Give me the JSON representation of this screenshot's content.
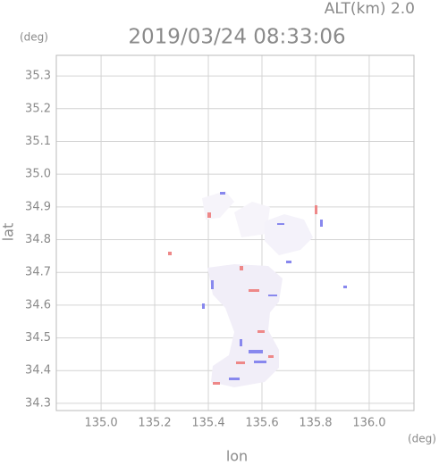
{
  "chart_data": {
    "type": "map",
    "title": "2019/03/24 08:33:06",
    "subtitle": "ALT(km) 2.0",
    "x_label": "lon",
    "x_unit": "(deg)",
    "y_label": "lat",
    "y_unit": "(deg)",
    "xlim": [
      134.833,
      136.167
    ],
    "ylim": [
      34.278,
      35.363
    ],
    "xticks": [
      {
        "value": 135,
        "label": "135.0"
      },
      135.2,
      135.4,
      135.6,
      135.8,
      {
        "value": 136,
        "label": "136.0"
      }
    ],
    "yticks": [
      35.3,
      35.2,
      35.1,
      {
        "value": 35,
        "label": "35.0"
      },
      34.9,
      34.8,
      34.7,
      34.6,
      34.5,
      34.4,
      34.3
    ],
    "grid": true
  }
}
